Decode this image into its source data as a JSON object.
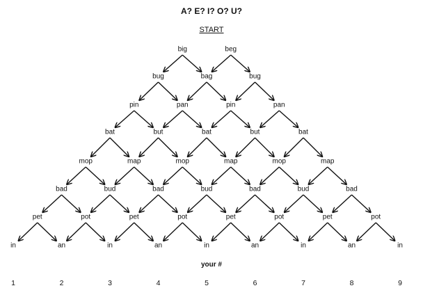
{
  "title": "A? E? I? O? U?",
  "start_label": "START",
  "rows": [
    [
      "big",
      "beg"
    ],
    [
      "bug",
      "bag",
      "bug"
    ],
    [
      "pin",
      "pan",
      "pin",
      "pan"
    ],
    [
      "bat",
      "but",
      "bat",
      "but",
      "bat"
    ],
    [
      "mop",
      "map",
      "mop",
      "map",
      "mop",
      "map"
    ],
    [
      "bad",
      "bud",
      "bad",
      "bud",
      "bad",
      "bud",
      "bad"
    ],
    [
      "pet",
      "pot",
      "pet",
      "pot",
      "pet",
      "pot",
      "pet",
      "pot"
    ],
    [
      "in",
      "an",
      "in",
      "an",
      "in",
      "an",
      "in",
      "an",
      "in"
    ]
  ],
  "your_label": "your #",
  "numbers": [
    "1",
    "2",
    "3",
    "4",
    "5",
    "6",
    "7",
    "8",
    "9"
  ]
}
